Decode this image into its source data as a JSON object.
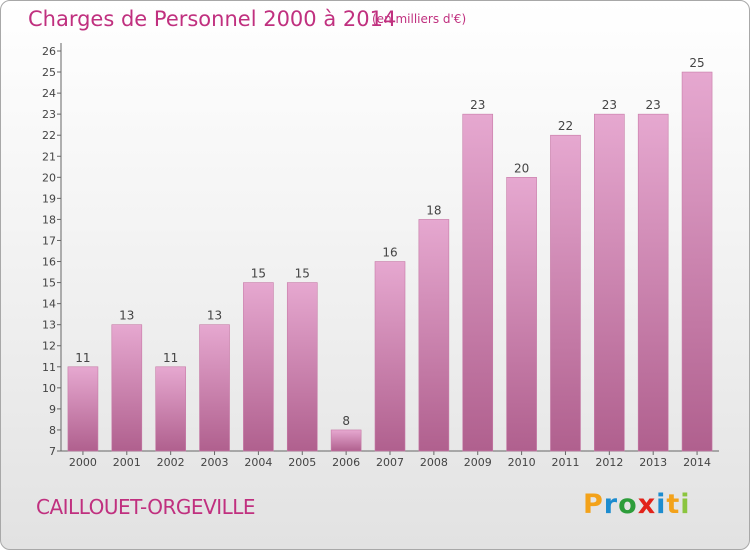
{
  "header": {
    "title": "Charges de Personnel 2000 à 2014",
    "unit_note": "(en milliers d'€)"
  },
  "footer": {
    "commune": "CAILLOUET-ORGEVILLE",
    "logo_letters": [
      "P",
      "r",
      "o",
      "x",
      "i",
      "t",
      "i"
    ],
    "logo_colors": [
      "#f3a21a",
      "#1c8ccf",
      "#2d9d3a",
      "#e2231a",
      "#1c8ccf",
      "#f3a21a",
      "#8bc53f"
    ]
  },
  "colors": {
    "title": "#c0307f",
    "bar_top": "#e6a8d0",
    "bar_bottom": "#b0608e",
    "bar_edge": "#c77ba7"
  },
  "chart_data": {
    "type": "bar",
    "title": "Charges de Personnel 2000 à 2014",
    "subtitle": "(en milliers d'€)",
    "xlabel": "",
    "ylabel": "",
    "categories": [
      "2000",
      "2001",
      "2002",
      "2003",
      "2004",
      "2005",
      "2006",
      "2007",
      "2008",
      "2009",
      "2010",
      "2011",
      "2012",
      "2013",
      "2014"
    ],
    "values": [
      11,
      13,
      11,
      13,
      15,
      15,
      8,
      16,
      18,
      23,
      20,
      22,
      23,
      23,
      25
    ],
    "ylim": [
      7,
      26
    ],
    "yticks": [
      7,
      8,
      9,
      10,
      11,
      12,
      13,
      14,
      15,
      16,
      17,
      18,
      19,
      20,
      21,
      22,
      23,
      24,
      25,
      26
    ],
    "grid": false,
    "legend": "none"
  }
}
